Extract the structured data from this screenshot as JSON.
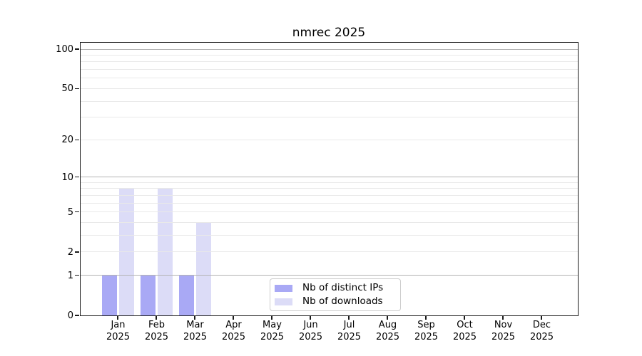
{
  "chart_data": {
    "type": "bar",
    "title": "nmrec 2025",
    "x": {
      "categories": [
        "Jan",
        "Feb",
        "Mar",
        "Apr",
        "May",
        "Jun",
        "Jul",
        "Aug",
        "Sep",
        "Oct",
        "Nov",
        "Dec"
      ],
      "year_label": "2025"
    },
    "y_axis": {
      "scale": "log1p",
      "ticks": [
        0,
        1,
        2,
        5,
        10,
        20,
        50,
        100
      ],
      "major_gridlines": [
        1,
        10,
        100
      ],
      "minor_gridlines": [
        2,
        3,
        4,
        5,
        6,
        7,
        8,
        9,
        20,
        30,
        40,
        50,
        60,
        70,
        80,
        90
      ],
      "top_value": 112,
      "grid": true
    },
    "series": [
      {
        "name": "Nb of distinct IPs",
        "color": "#a9a9f5",
        "values": [
          1,
          1,
          1,
          0,
          0,
          0,
          0,
          0,
          0,
          0,
          0,
          0
        ]
      },
      {
        "name": "Nb of downloads",
        "color": "#dcdcf7",
        "values": [
          8,
          8,
          4,
          0,
          0,
          0,
          0,
          0,
          0,
          0,
          0,
          0
        ]
      }
    ],
    "legend": {
      "position": "lower center"
    }
  },
  "colors": {
    "major_grid": "#b3b3b3",
    "minor_grid": "#e9e9e9",
    "spine": "#1a1a1a"
  }
}
